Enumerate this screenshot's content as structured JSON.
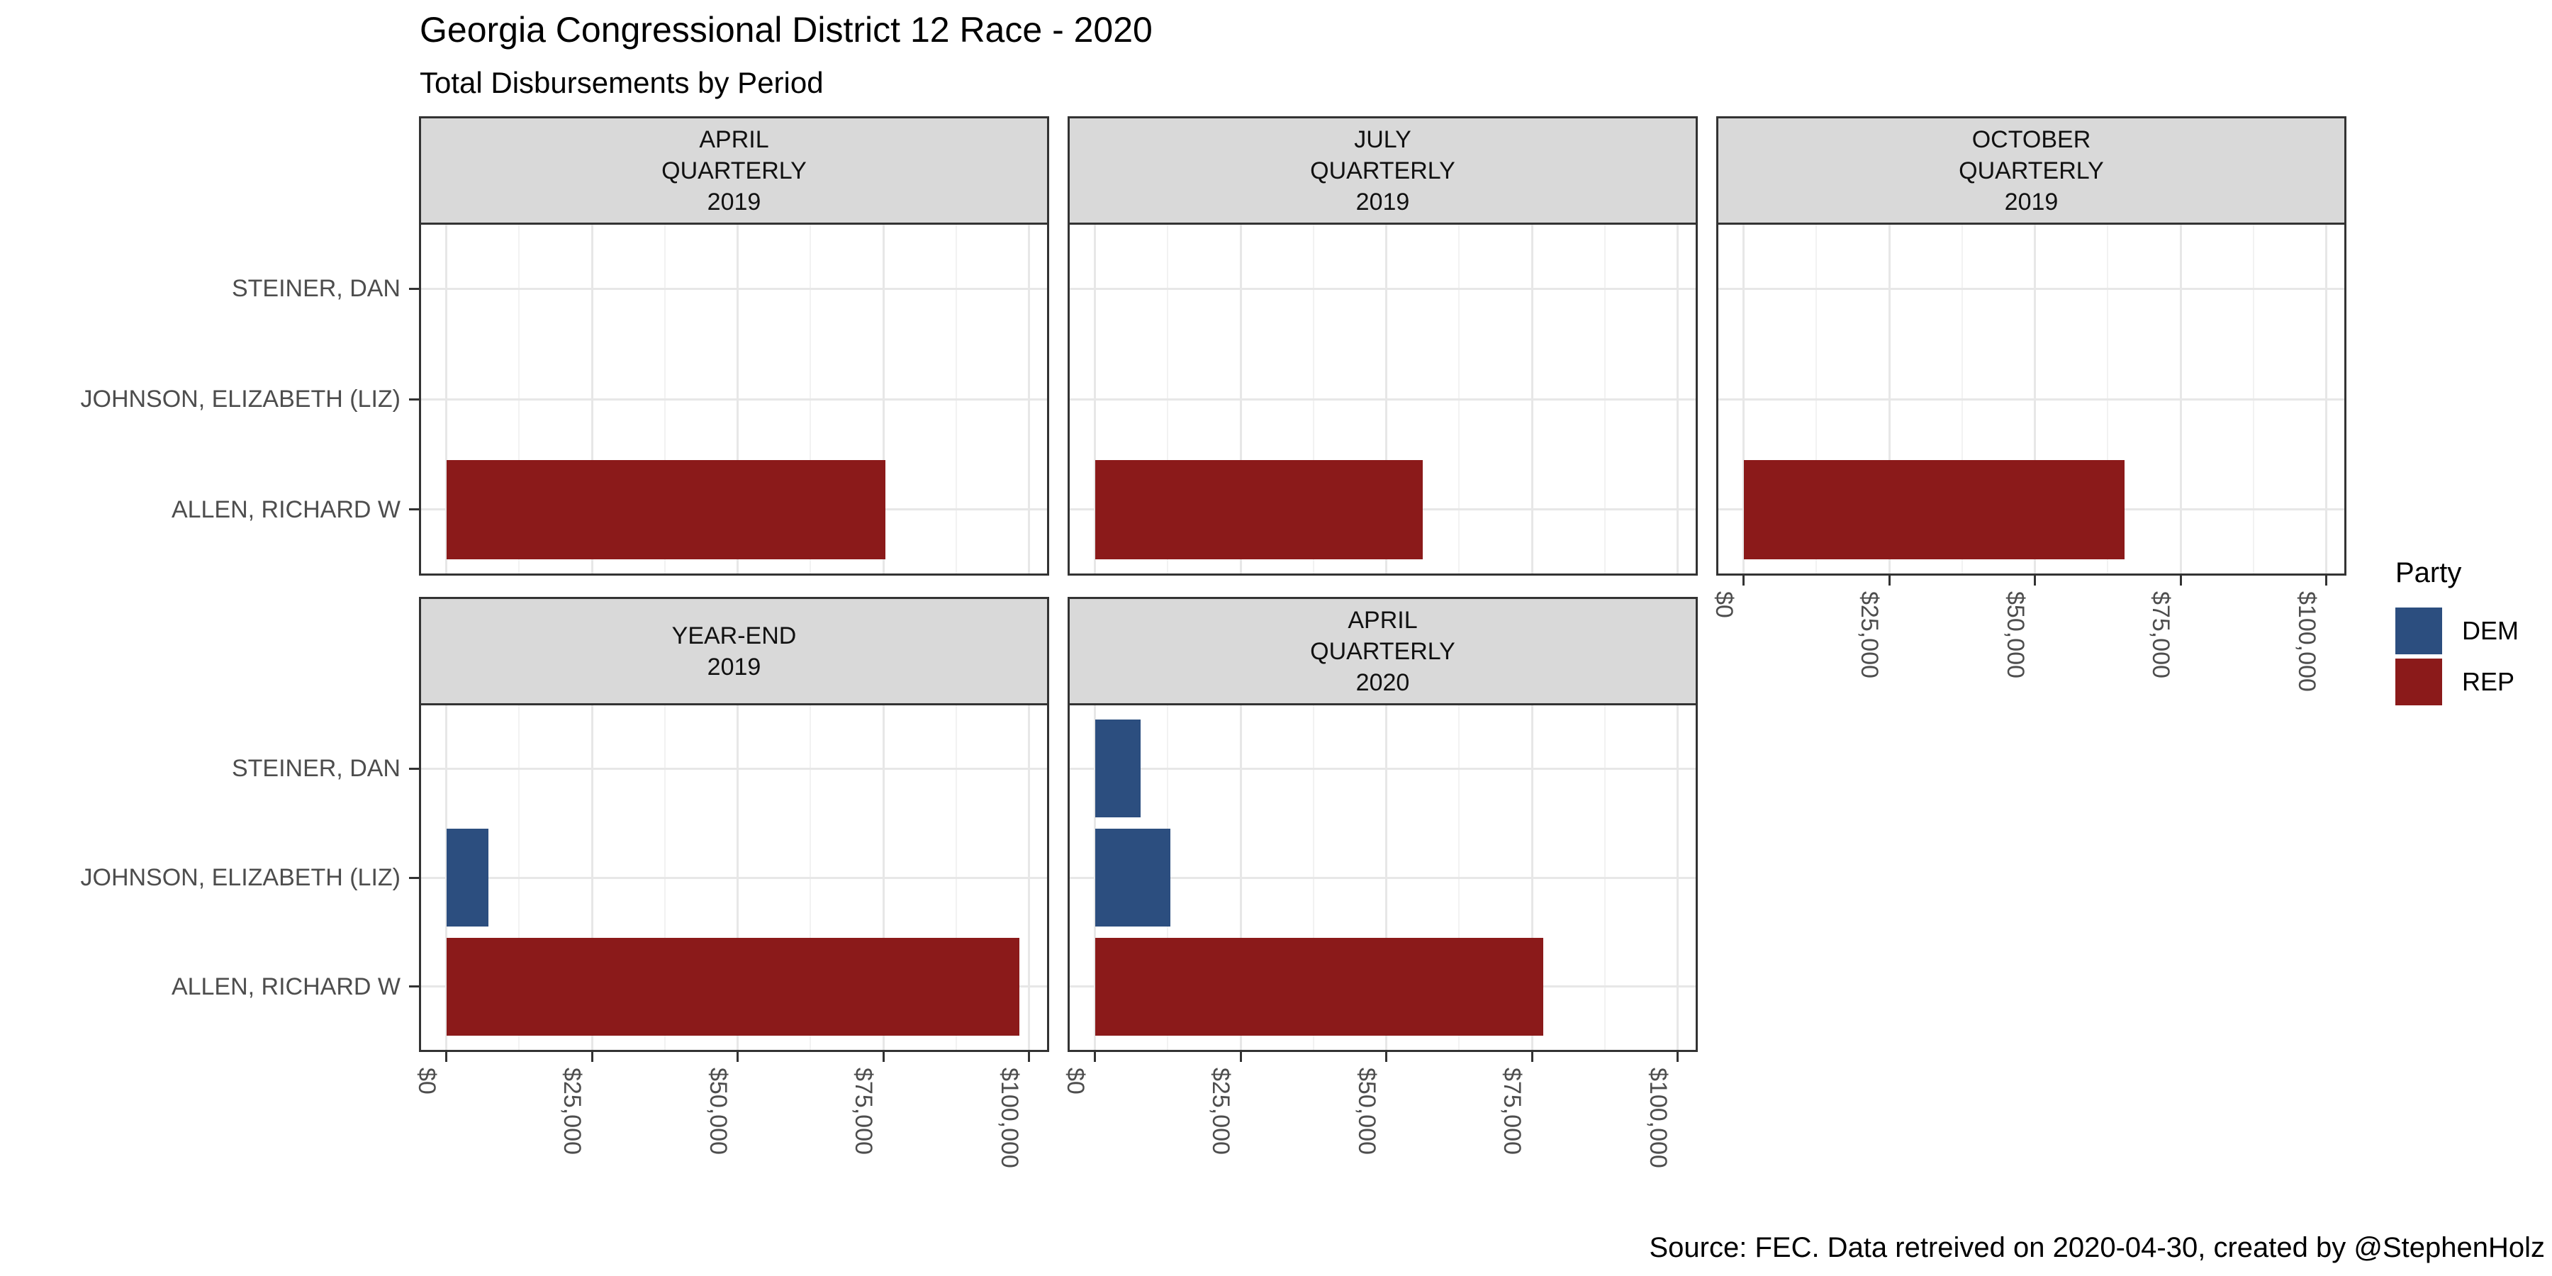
{
  "header": {
    "title": "Georgia Congressional District 12 Race - 2020",
    "subtitle": "Total Disbursements by Period"
  },
  "caption": "Source: FEC. Data retreived on 2020-04-30, created by @StephenHolz",
  "legend": {
    "title": "Party",
    "entries": [
      {
        "label": "DEM",
        "color": "#2C4E7F"
      },
      {
        "label": "REP",
        "color": "#8B1A1A"
      }
    ]
  },
  "chart_data": {
    "type": "bar",
    "orientation": "horizontal",
    "title": "Georgia Congressional District 12 Race - 2020",
    "subtitle": "Total Disbursements by Period",
    "caption": "Source: FEC. Data retreived on 2020-04-30, created by @StephenHolz",
    "grid": true,
    "legend_position": "right",
    "categories": [
      "STEINER, DAN",
      "JOHNSON, ELIZABETH (LIZ)",
      "ALLEN, RICHARD W"
    ],
    "x_ticks": [
      "$0",
      "$25,000",
      "$50,000",
      "$75,000",
      "$100,000"
    ],
    "x_tick_values": [
      0,
      25000,
      50000,
      75000,
      100000
    ],
    "xlim": [
      0,
      100000
    ],
    "party_colors": {
      "DEM": "#2C4E7F",
      "REP": "#8B1A1A"
    },
    "facets": [
      {
        "label_lines": [
          "APRIL",
          "QUARTERLY",
          "2019"
        ],
        "bars": [
          {
            "candidate": "ALLEN, RICHARD W",
            "party": "REP",
            "value": 75400
          }
        ]
      },
      {
        "label_lines": [
          "JULY",
          "QUARTERLY",
          "2019"
        ],
        "bars": [
          {
            "candidate": "ALLEN, RICHARD W",
            "party": "REP",
            "value": 56300
          }
        ]
      },
      {
        "label_lines": [
          "OCTOBER",
          "QUARTERLY",
          "2019"
        ],
        "bars": [
          {
            "candidate": "ALLEN, RICHARD W",
            "party": "REP",
            "value": 65400
          }
        ]
      },
      {
        "label_lines": [
          "YEAR-END",
          "2019"
        ],
        "bars": [
          {
            "candidate": "JOHNSON, ELIZABETH (LIZ)",
            "party": "DEM",
            "value": 7200
          },
          {
            "candidate": "ALLEN, RICHARD W",
            "party": "REP",
            "value": 98400
          }
        ]
      },
      {
        "label_lines": [
          "APRIL",
          "QUARTERLY",
          "2020"
        ],
        "bars": [
          {
            "candidate": "STEINER, DAN",
            "party": "DEM",
            "value": 7900
          },
          {
            "candidate": "JOHNSON, ELIZABETH (LIZ)",
            "party": "DEM",
            "value": 13000
          },
          {
            "candidate": "ALLEN, RICHARD W",
            "party": "REP",
            "value": 77000
          }
        ]
      }
    ]
  }
}
